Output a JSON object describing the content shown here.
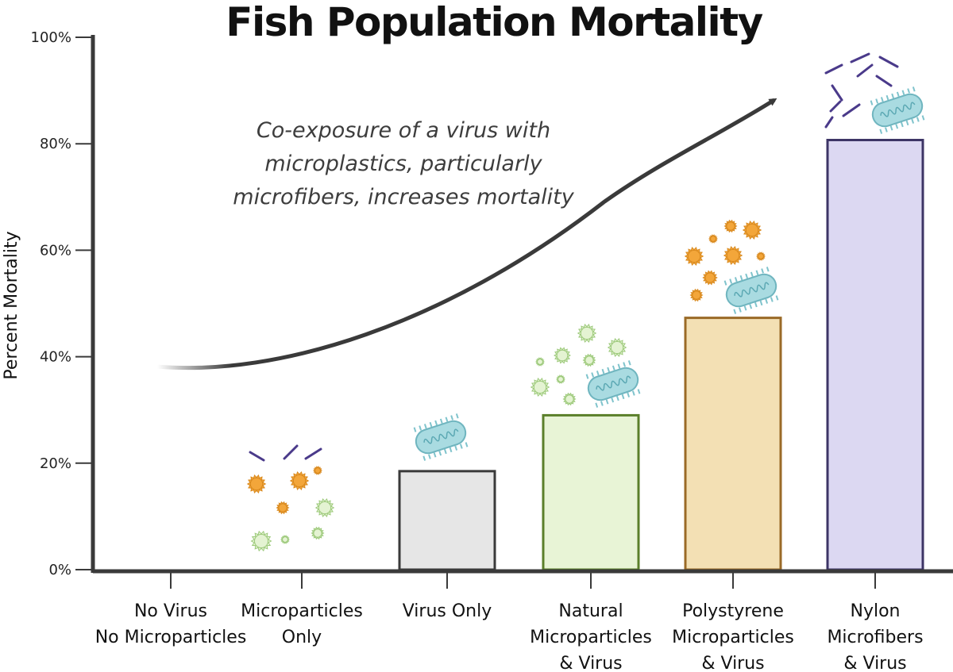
{
  "chart_data": {
    "type": "bar",
    "title": "Fish Population Mortality",
    "xlabel": "",
    "ylabel": "Percent Mortality",
    "ylim": [
      0,
      100
    ],
    "yticks": [
      "0%",
      "20%",
      "40%",
      "60%",
      "80%",
      "100%"
    ],
    "grid": false,
    "categories": [
      "No Virus\nNo Microparticles",
      "Microparticles\nOnly",
      "Virus Only",
      "Natural\nMicroparticles\n& Virus",
      "Polystyrene\nMicroparticles\n& Virus",
      "Nylon\nMicrofibers\n& Virus"
    ],
    "values": [
      0,
      0,
      18.5,
      29,
      47.3,
      80.7
    ],
    "colors": {
      "fill": [
        "#ffffff",
        "#ffffff",
        "#e6e6e6",
        "#e8f4d6",
        "#f3e0b4",
        "#dcd8f2"
      ],
      "stroke": [
        "#444444",
        "#444444",
        "#3a3a3a",
        "#5b7f2a",
        "#9a6a27",
        "#3d3566"
      ]
    },
    "annotation": "Co-exposure of a virus with\nmicroplastics, particularly\nmicrofibers, increases mortality",
    "icons": [
      "virus-icon",
      "microparticle-icon",
      "microfiber-icon"
    ]
  }
}
